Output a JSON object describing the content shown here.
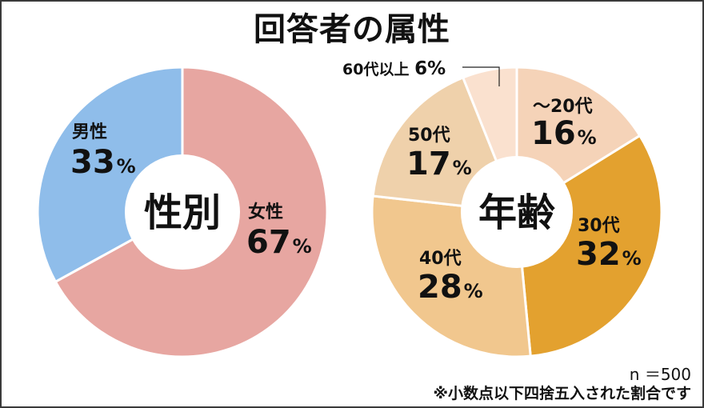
{
  "title": "回答者の属性",
  "colors": {
    "female": "#e7a6a1",
    "male": "#8fbdea",
    "age_under20": "#f5d3b8",
    "age_30s": "#e3a12f",
    "age_40s": "#f1c78e",
    "age_50s": "#efd1ab",
    "age_60plus": "#fae1cf"
  },
  "chart_data": [
    {
      "type": "pie",
      "center_label": "性別",
      "slices": [
        {
          "label": "女性",
          "value": 67,
          "value_text": "67",
          "unit": "%"
        },
        {
          "label": "男性",
          "value": 33,
          "value_text": "33",
          "unit": "%"
        }
      ]
    },
    {
      "type": "pie",
      "center_label": "年齢",
      "slices": [
        {
          "label": "〜20代",
          "value": 16,
          "value_text": "16",
          "unit": "%"
        },
        {
          "label": "30代",
          "value": 32,
          "value_text": "32",
          "unit": "%"
        },
        {
          "label": "40代",
          "value": 28,
          "value_text": "28",
          "unit": "%"
        },
        {
          "label": "50代",
          "value": 17,
          "value_text": "17",
          "unit": "%"
        },
        {
          "label": "60代以上",
          "value": 6,
          "value_text": "6",
          "unit": "%"
        }
      ]
    }
  ],
  "footer": {
    "sample_size": "n ＝500",
    "note": "※小数点以下四捨五入された割合です"
  }
}
